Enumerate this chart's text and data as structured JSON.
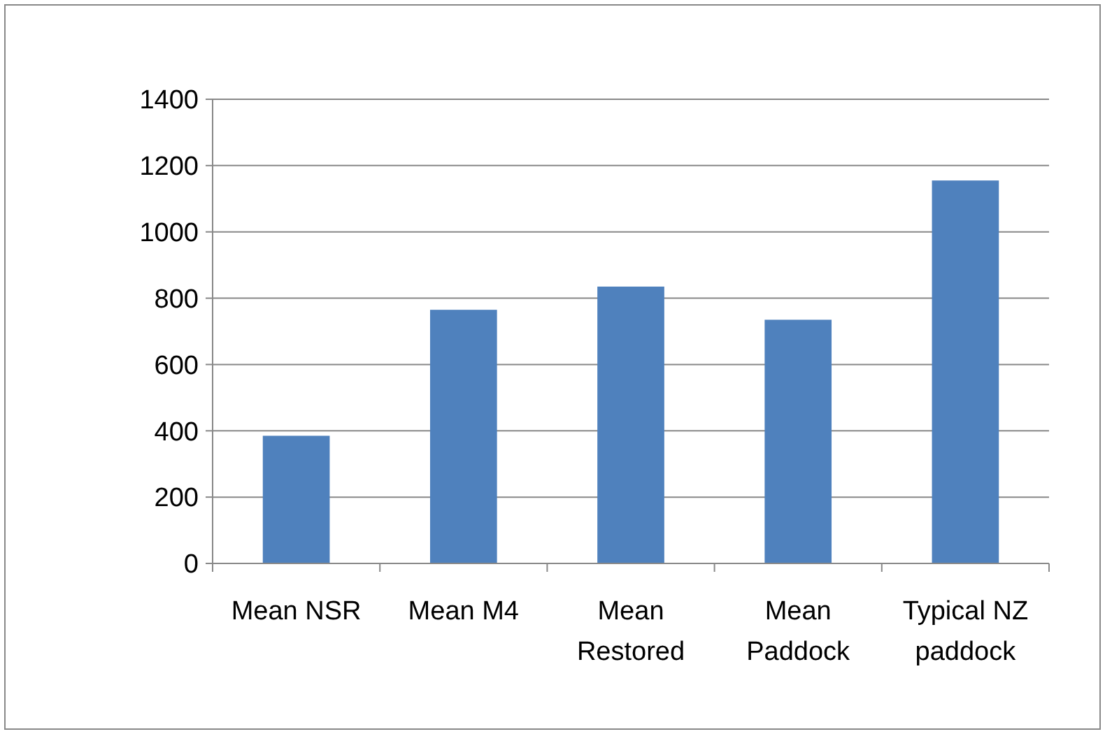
{
  "chart_data": {
    "type": "bar",
    "categories": [
      "Mean NSR",
      "Mean M4",
      "Mean Restored",
      "Mean Paddock",
      "Typical NZ paddock"
    ],
    "values": [
      385,
      765,
      835,
      735,
      1155
    ],
    "color": "#4f81bd",
    "ylim": [
      0,
      1400
    ],
    "yticks": [
      0,
      200,
      400,
      600,
      800,
      1000,
      1200,
      1400
    ],
    "grid": "y"
  }
}
